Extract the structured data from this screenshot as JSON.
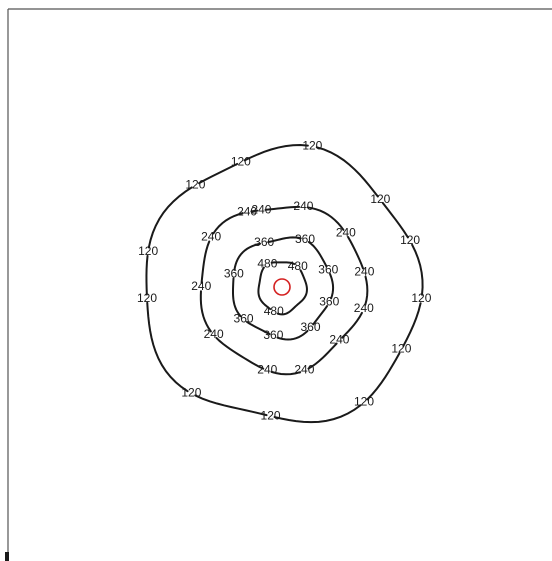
{
  "diagram": {
    "source": {
      "color": "#d42020",
      "icon": "source-circle-icon"
    },
    "line_color": "#1a1a1a",
    "contours": [
      {
        "level": "480",
        "labels": [
          "480",
          "480",
          "480"
        ]
      },
      {
        "level": "360",
        "labels": [
          "360",
          "360",
          "360",
          "360",
          "360",
          "360",
          "360",
          "360"
        ]
      },
      {
        "level": "240",
        "labels": [
          "240",
          "240",
          "240",
          "240",
          "240",
          "240",
          "240",
          "240",
          "240",
          "240",
          "240",
          "240"
        ]
      },
      {
        "level": "120",
        "labels": [
          "120",
          "120",
          "120",
          "120",
          "120",
          "120",
          "120",
          "120",
          "120",
          "120",
          "120",
          "120"
        ]
      }
    ]
  }
}
